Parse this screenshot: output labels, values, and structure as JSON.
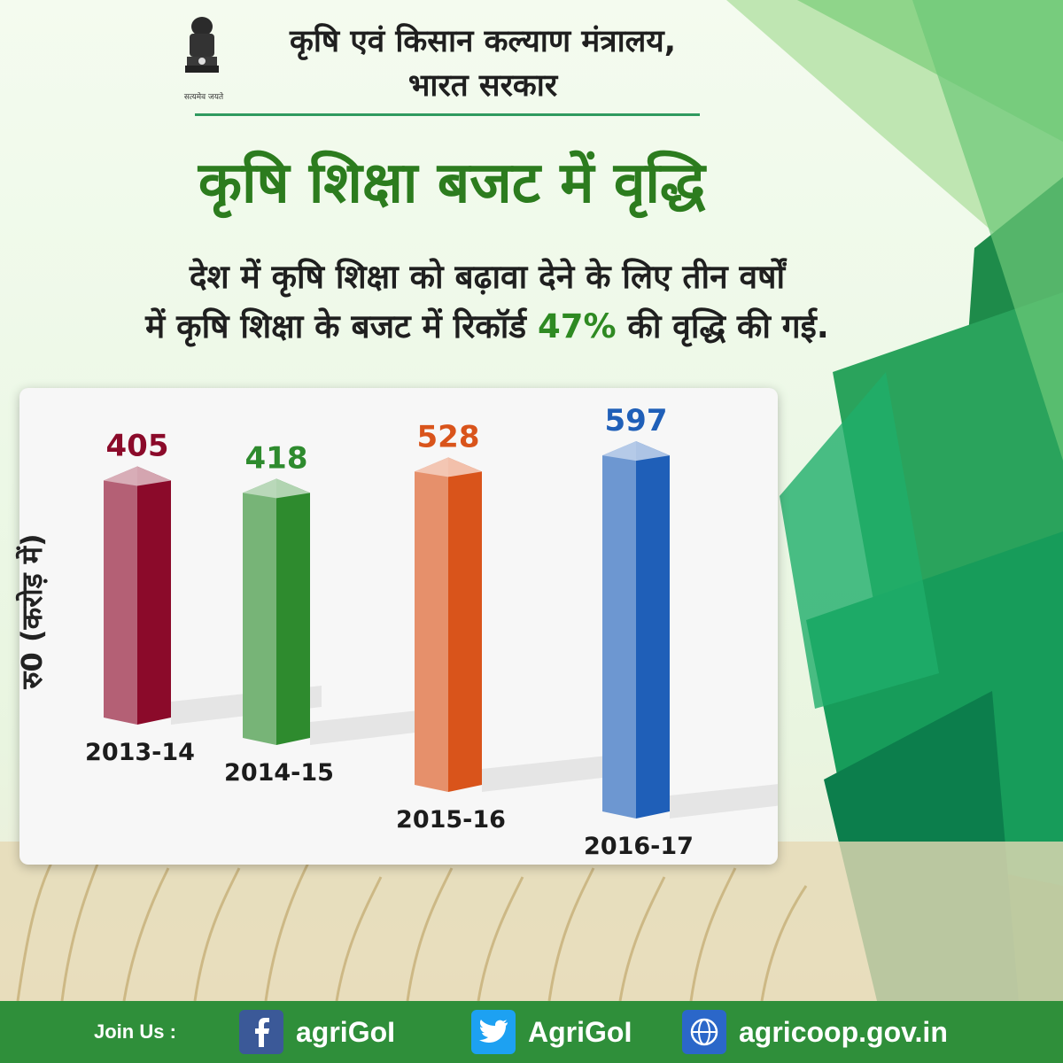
{
  "header": {
    "ministry_line1": "कृषि एवं किसान कल्याण मंत्रालय,",
    "ministry_line2": "भारत सरकार",
    "emblem_caption": "सत्यमेव जयते"
  },
  "title": "कृषि शिक्षा बजट में वृद्धि",
  "subtitle": {
    "line1": "देश में कृषि शिक्षा को बढ़ावा देने के लिए तीन वर्षों",
    "line2_before": "में कृषि शिक्षा के बजट में रिकॉर्ड ",
    "line2_pct": "47%",
    "line2_after": " की वृद्धि की गई."
  },
  "chart_data": {
    "type": "bar",
    "ylabel": "रु0 (करोड़ में)",
    "categories": [
      "2013-14",
      "2014-15",
      "2015-16",
      "2016-17"
    ],
    "values": [
      405,
      418,
      528,
      597
    ],
    "colors": [
      "#8b0a2a",
      "#2e8b2e",
      "#d9541b",
      "#1f5fb8"
    ],
    "grid": false,
    "legend": "none"
  },
  "footer": {
    "join_label": "Join Us :",
    "facebook": "agriGoI",
    "twitter": "AgriGoI",
    "website": "agricoop.gov.in"
  },
  "colors": {
    "brand_green": "#2c7c1e",
    "footer_green": "#2f8f3a",
    "divider": "#2f9a5f"
  }
}
